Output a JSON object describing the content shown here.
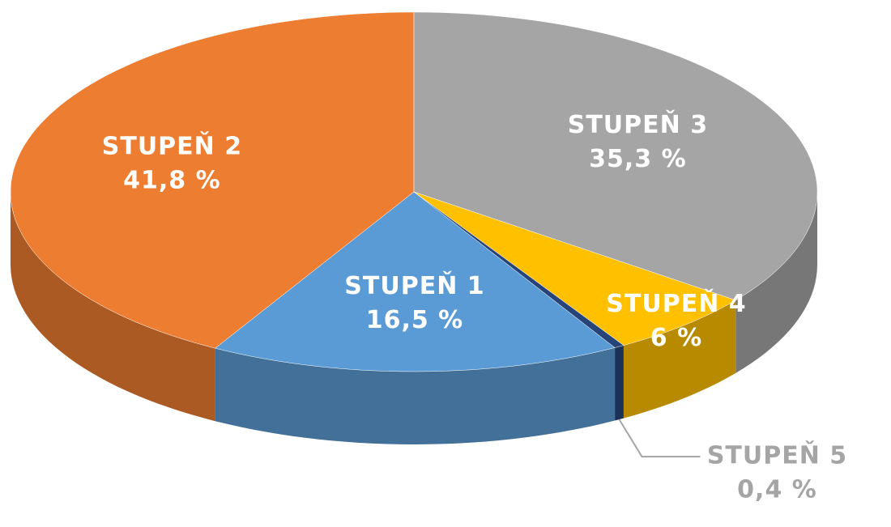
{
  "chart_data": {
    "type": "pie3d",
    "categories": [
      "STUPEŇ 1",
      "STUPEŇ 2",
      "STUPEŇ 3",
      "STUPEŇ 4",
      "STUPEŇ 5"
    ],
    "values": [
      16.5,
      41.8,
      35.3,
      6,
      0.4
    ],
    "value_labels": [
      "16,5 %",
      "41,8 %",
      "35,3 %",
      "6 %",
      "0,4 %"
    ],
    "colors": [
      "#5b9bd5",
      "#ed7d31",
      "#a5a5a5",
      "#ffc000",
      "#264478"
    ],
    "label_color": "#ffffff",
    "outside_label_color": "#a5a5a5"
  }
}
